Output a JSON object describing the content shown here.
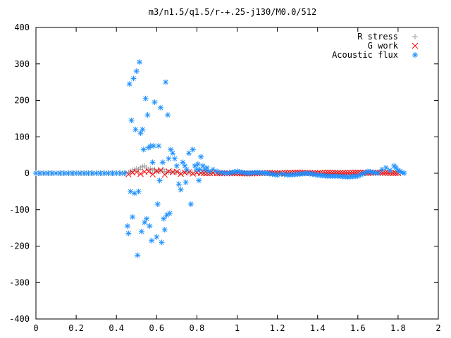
{
  "chart_data": {
    "type": "scatter",
    "title": "m3/n1.5/q1.5/r-+.25-j130/M0.0/512",
    "xlabel": "",
    "ylabel": "",
    "xlim": [
      0,
      2
    ],
    "ylim": [
      -400,
      400
    ],
    "xticks": [
      0,
      0.2,
      0.4,
      0.6,
      0.8,
      1,
      1.2,
      1.4,
      1.6,
      1.8,
      2
    ],
    "xtick_labels": [
      "0",
      "0.2",
      "0.4",
      "0.6",
      "0.8",
      "1",
      "1.2",
      "1.4",
      "1.6",
      "1.8",
      "2"
    ],
    "yticks": [
      400,
      300,
      200,
      100,
      0,
      -100,
      -200,
      -300,
      -400
    ],
    "ytick_labels": [
      "400",
      "300",
      "200",
      "100",
      "0",
      "-100",
      "-200",
      "-300",
      "-400"
    ],
    "grid": false,
    "legend_position": "top-right",
    "series": [
      {
        "name": "R stress",
        "color": "#a0a0a0",
        "marker": "plus",
        "x": [
          0,
          0.05,
          0.1,
          0.15,
          0.2,
          0.25,
          0.3,
          0.35,
          0.4,
          0.43,
          0.46,
          0.47,
          0.48,
          0.49,
          0.5,
          0.51,
          0.52,
          0.53,
          0.54,
          0.55,
          0.56,
          0.57,
          0.58,
          0.59,
          0.6,
          0.61,
          0.62,
          0.63,
          0.64,
          0.65,
          0.66,
          0.67,
          0.68,
          0.69,
          0.7,
          0.72,
          0.74,
          0.76,
          0.78,
          0.8,
          0.85,
          0.9,
          0.95,
          1,
          1.1,
          1.2,
          1.3,
          1.4,
          1.5,
          1.6,
          1.7,
          1.8
        ],
        "y": [
          0,
          0,
          0,
          0,
          0,
          0,
          0,
          0,
          0,
          0,
          2,
          5,
          8,
          10,
          12,
          10,
          15,
          18,
          20,
          15,
          10,
          12,
          8,
          10,
          5,
          8,
          6,
          10,
          5,
          4,
          3,
          2,
          5,
          3,
          2,
          1,
          3,
          2,
          1,
          0,
          1,
          0,
          0,
          0,
          0,
          0,
          0,
          0,
          0,
          0,
          0,
          1
        ]
      },
      {
        "name": "G work",
        "color": "#ff0000",
        "marker": "cross",
        "x": [
          0.46,
          0.48,
          0.5,
          0.52,
          0.54,
          0.56,
          0.58,
          0.6,
          0.62,
          0.64,
          0.66,
          0.68,
          0.7,
          0.72,
          0.74,
          0.76,
          0.78,
          0.8,
          0.82,
          0.85,
          0.88,
          0.9,
          0.95,
          1,
          1.05,
          1.1,
          1.15,
          1.2,
          1.25,
          1.3,
          1.35,
          1.4,
          1.45,
          1.5,
          1.55,
          1.6,
          1.65,
          1.7,
          1.75,
          1.8
        ],
        "y": [
          -3,
          2,
          3,
          -2,
          4,
          5,
          -3,
          6,
          8,
          -4,
          5,
          3,
          4,
          -2,
          2,
          3,
          -1,
          2,
          1,
          0,
          1,
          0,
          0,
          0,
          -1,
          0,
          1,
          0,
          1,
          2,
          1,
          0,
          2,
          1,
          1,
          2,
          1,
          2,
          1,
          0
        ]
      },
      {
        "name": "Acoustic flux",
        "color": "#1e90ff",
        "marker": "star",
        "x": [
          0,
          0.02,
          0.04,
          0.06,
          0.08,
          0.1,
          0.12,
          0.14,
          0.16,
          0.18,
          0.2,
          0.22,
          0.24,
          0.26,
          0.28,
          0.3,
          0.32,
          0.34,
          0.36,
          0.38,
          0.4,
          0.42,
          0.44,
          0.455,
          0.46,
          0.465,
          0.47,
          0.475,
          0.48,
          0.485,
          0.49,
          0.495,
          0.5,
          0.505,
          0.51,
          0.515,
          0.52,
          0.525,
          0.53,
          0.535,
          0.54,
          0.545,
          0.55,
          0.555,
          0.56,
          0.565,
          0.57,
          0.575,
          0.58,
          0.585,
          0.59,
          0.6,
          0.605,
          0.61,
          0.615,
          0.62,
          0.625,
          0.63,
          0.635,
          0.64,
          0.645,
          0.65,
          0.655,
          0.66,
          0.665,
          0.67,
          0.68,
          0.69,
          0.7,
          0.71,
          0.72,
          0.73,
          0.74,
          0.745,
          0.75,
          0.76,
          0.77,
          0.78,
          0.79,
          0.8,
          0.805,
          0.81,
          0.815,
          0.82,
          0.83,
          0.84,
          0.85,
          0.86,
          0.88,
          0.9,
          0.92,
          0.95,
          1,
          1.05,
          1.1,
          1.15,
          1.2,
          1.22,
          1.25,
          1.3,
          1.35,
          1.4,
          1.45,
          1.5,
          1.55,
          1.6,
          1.65,
          1.7,
          1.72,
          1.74,
          1.76,
          1.78,
          1.79,
          1.8,
          1.81,
          1.82,
          1.83
        ],
        "y": [
          0,
          0,
          0,
          0,
          0,
          0,
          0,
          0,
          0,
          0,
          0,
          0,
          0,
          0,
          0,
          0,
          0,
          0,
          0,
          0,
          0,
          0,
          0,
          -145,
          -165,
          245,
          -50,
          145,
          -120,
          260,
          -55,
          120,
          280,
          -225,
          -50,
          305,
          110,
          -160,
          120,
          65,
          -135,
          205,
          -125,
          160,
          70,
          -145,
          75,
          -185,
          30,
          75,
          195,
          -175,
          -85,
          75,
          -20,
          180,
          -190,
          30,
          -125,
          -155,
          250,
          -115,
          160,
          40,
          -110,
          65,
          55,
          40,
          20,
          -30,
          -45,
          30,
          20,
          -25,
          10,
          55,
          -85,
          65,
          20,
          10,
          25,
          -20,
          10,
          45,
          20,
          10,
          15,
          5,
          10,
          5,
          2,
          0,
          5,
          0,
          2,
          0,
          -5,
          -2,
          -5,
          -3,
          0,
          -5,
          -8,
          -8,
          -10,
          -8,
          5,
          0,
          10,
          15,
          8,
          20,
          15,
          8,
          5,
          2,
          0
        ]
      }
    ]
  }
}
